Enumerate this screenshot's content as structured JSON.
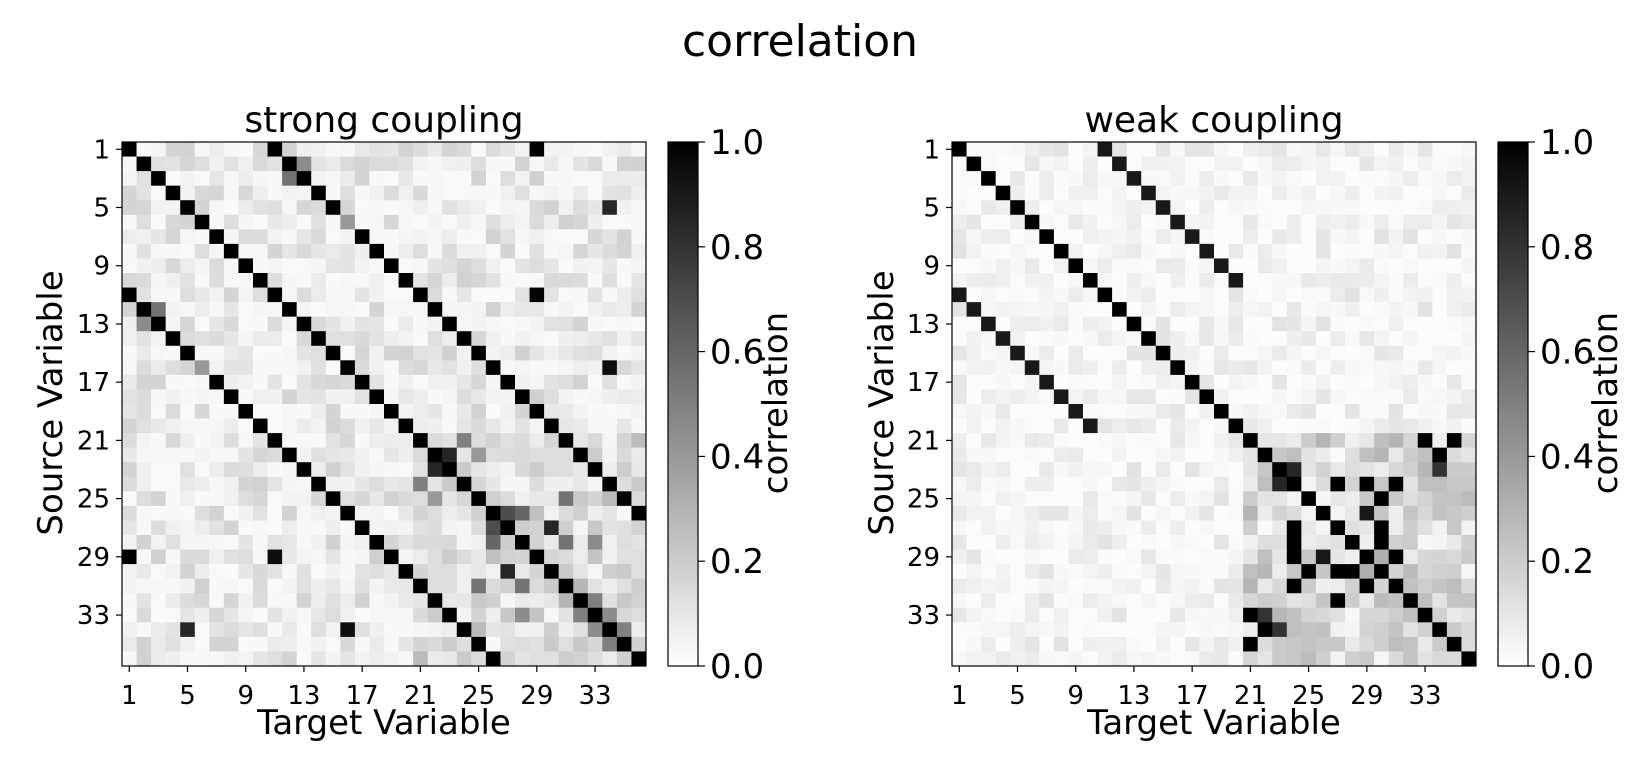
{
  "figure": {
    "title": "correlation"
  },
  "chart_data": [
    {
      "type": "heatmap",
      "title": "strong coupling",
      "xlabel": "Target Variable",
      "ylabel": "Source Variable",
      "n": 36,
      "tick_labels": [
        "1",
        "5",
        "9",
        "13",
        "17",
        "21",
        "25",
        "29",
        "33"
      ],
      "colorbar": {
        "label": "correlation",
        "min": 0.0,
        "max": 1.0,
        "tick_labels": [
          "0.0",
          "0.2",
          "0.4",
          "0.6",
          "0.8",
          "1.0"
        ],
        "colormap": "white-to-black"
      },
      "diagonals": [
        {
          "offset": 0,
          "value": 1.0
        },
        {
          "offset": 10,
          "value": 1.0
        },
        {
          "offset": -10,
          "value": 1.0
        }
      ],
      "cells": [
        {
          "row": 1,
          "col": 11,
          "value": 1.0
        },
        {
          "row": 1,
          "col": 29,
          "value": 1.0
        },
        {
          "row": 11,
          "col": 29,
          "value": 0.98
        },
        {
          "row": 29,
          "col": 1,
          "value": 1.0
        },
        {
          "row": 29,
          "col": 11,
          "value": 0.95
        },
        {
          "row": 3,
          "col": 12,
          "value": 0.55
        },
        {
          "row": 2,
          "col": 13,
          "value": 0.45
        },
        {
          "row": 12,
          "col": 3,
          "value": 0.55
        },
        {
          "row": 13,
          "col": 2,
          "value": 0.45
        },
        {
          "row": 5,
          "col": 34,
          "value": 0.85
        },
        {
          "row": 16,
          "col": 34,
          "value": 0.95
        },
        {
          "row": 34,
          "col": 5,
          "value": 0.85
        },
        {
          "row": 34,
          "col": 16,
          "value": 0.95
        },
        {
          "row": 6,
          "col": 16,
          "value": 0.4
        },
        {
          "row": 16,
          "col": 6,
          "value": 0.4
        },
        {
          "row": 23,
          "col": 22,
          "value": 0.85
        },
        {
          "row": 22,
          "col": 23,
          "value": 0.85
        },
        {
          "row": 27,
          "col": 26,
          "value": 0.7
        },
        {
          "row": 26,
          "col": 27,
          "value": 0.7
        },
        {
          "row": 30,
          "col": 27,
          "value": 0.85
        },
        {
          "row": 27,
          "col": 30,
          "value": 0.85
        },
        {
          "row": 28,
          "col": 26,
          "value": 0.6
        },
        {
          "row": 26,
          "col": 28,
          "value": 0.6
        },
        {
          "row": 31,
          "col": 28,
          "value": 0.55
        },
        {
          "row": 28,
          "col": 31,
          "value": 0.55
        },
        {
          "row": 33,
          "col": 32,
          "value": 0.5
        },
        {
          "row": 32,
          "col": 33,
          "value": 0.5
        },
        {
          "row": 34,
          "col": 33,
          "value": 0.45
        },
        {
          "row": 33,
          "col": 34,
          "value": 0.45
        },
        {
          "row": 35,
          "col": 34,
          "value": 0.5
        },
        {
          "row": 34,
          "col": 35,
          "value": 0.5
        },
        {
          "row": 24,
          "col": 21,
          "value": 0.5
        },
        {
          "row": 21,
          "col": 24,
          "value": 0.5
        },
        {
          "row": 25,
          "col": 31,
          "value": 0.55
        },
        {
          "row": 31,
          "col": 25,
          "value": 0.55
        },
        {
          "row": 28,
          "col": 33,
          "value": 0.45
        },
        {
          "row": 33,
          "col": 28,
          "value": 0.45
        },
        {
          "row": 25,
          "col": 22,
          "value": 0.4
        },
        {
          "row": 22,
          "col": 25,
          "value": 0.4
        }
      ],
      "background": {
        "base": 0.06,
        "variation": 0.16,
        "structured_band": [
          21,
          36
        ],
        "band_extra": 0.12
      }
    },
    {
      "type": "heatmap",
      "title": "weak coupling",
      "xlabel": "Target Variable",
      "ylabel": "Source Variable",
      "n": 36,
      "tick_labels": [
        "1",
        "5",
        "9",
        "13",
        "17",
        "21",
        "25",
        "29",
        "33"
      ],
      "colorbar": {
        "label": "correlation",
        "min": 0.0,
        "max": 1.0,
        "tick_labels": [
          "0.0",
          "0.2",
          "0.4",
          "0.6",
          "0.8",
          "1.0"
        ],
        "colormap": "white-to-black"
      },
      "diagonals": [
        {
          "offset": 0,
          "value": 1.0
        },
        {
          "offset": 10,
          "value": 0.9,
          "range": [
            1,
            10
          ]
        },
        {
          "offset": -10,
          "value": 0.9,
          "range": [
            1,
            10
          ]
        }
      ],
      "cells": [
        {
          "row": 21,
          "col": 33,
          "value": 1.0
        },
        {
          "row": 21,
          "col": 35,
          "value": 1.0
        },
        {
          "row": 22,
          "col": 34,
          "value": 1.0
        },
        {
          "row": 23,
          "col": 34,
          "value": 0.8
        },
        {
          "row": 33,
          "col": 21,
          "value": 1.0
        },
        {
          "row": 35,
          "col": 21,
          "value": 1.0
        },
        {
          "row": 34,
          "col": 22,
          "value": 1.0
        },
        {
          "row": 34,
          "col": 23,
          "value": 0.8
        },
        {
          "row": 24,
          "col": 27,
          "value": 1.0
        },
        {
          "row": 24,
          "col": 29,
          "value": 1.0
        },
        {
          "row": 24,
          "col": 31,
          "value": 1.0
        },
        {
          "row": 25,
          "col": 30,
          "value": 1.0
        },
        {
          "row": 26,
          "col": 29,
          "value": 0.9
        },
        {
          "row": 27,
          "col": 24,
          "value": 1.0
        },
        {
          "row": 27,
          "col": 30,
          "value": 1.0
        },
        {
          "row": 28,
          "col": 24,
          "value": 1.0
        },
        {
          "row": 28,
          "col": 30,
          "value": 1.0
        },
        {
          "row": 29,
          "col": 24,
          "value": 1.0
        },
        {
          "row": 29,
          "col": 26,
          "value": 0.9
        },
        {
          "row": 29,
          "col": 31,
          "value": 1.0
        },
        {
          "row": 30,
          "col": 25,
          "value": 1.0
        },
        {
          "row": 30,
          "col": 27,
          "value": 1.0
        },
        {
          "row": 30,
          "col": 28,
          "value": 1.0
        },
        {
          "row": 31,
          "col": 24,
          "value": 1.0
        },
        {
          "row": 31,
          "col": 29,
          "value": 1.0
        },
        {
          "row": 32,
          "col": 27,
          "value": 1.0
        },
        {
          "row": 33,
          "col": 22,
          "value": 0.8
        },
        {
          "row": 23,
          "col": 24,
          "value": 0.85
        },
        {
          "row": 24,
          "col": 23,
          "value": 0.85
        }
      ],
      "background": {
        "base": 0.03,
        "variation": 0.1,
        "structured_band": [
          21,
          36
        ],
        "band_extra": 0.22
      }
    }
  ]
}
